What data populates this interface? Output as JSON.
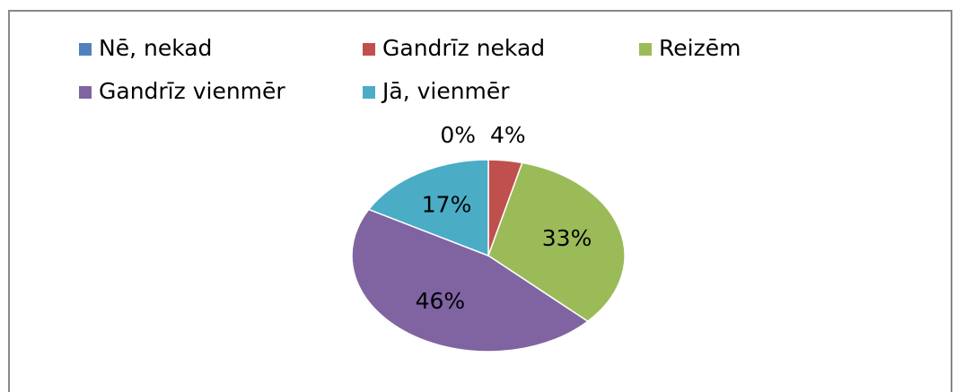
{
  "chart_data": {
    "type": "pie",
    "categories": [
      "Nē, nekad",
      "Gandrīz nekad",
      "Reizēm",
      "Gandrīz vienmēr",
      "Jā, vienmēr"
    ],
    "values": [
      0,
      4,
      33,
      46,
      17
    ],
    "value_labels": [
      "0%",
      "4%",
      "33%",
      "46%",
      "17%"
    ],
    "colors": [
      "#4f81bd",
      "#c0504d",
      "#9bbb59",
      "#8064a2",
      "#4bacc6"
    ]
  }
}
